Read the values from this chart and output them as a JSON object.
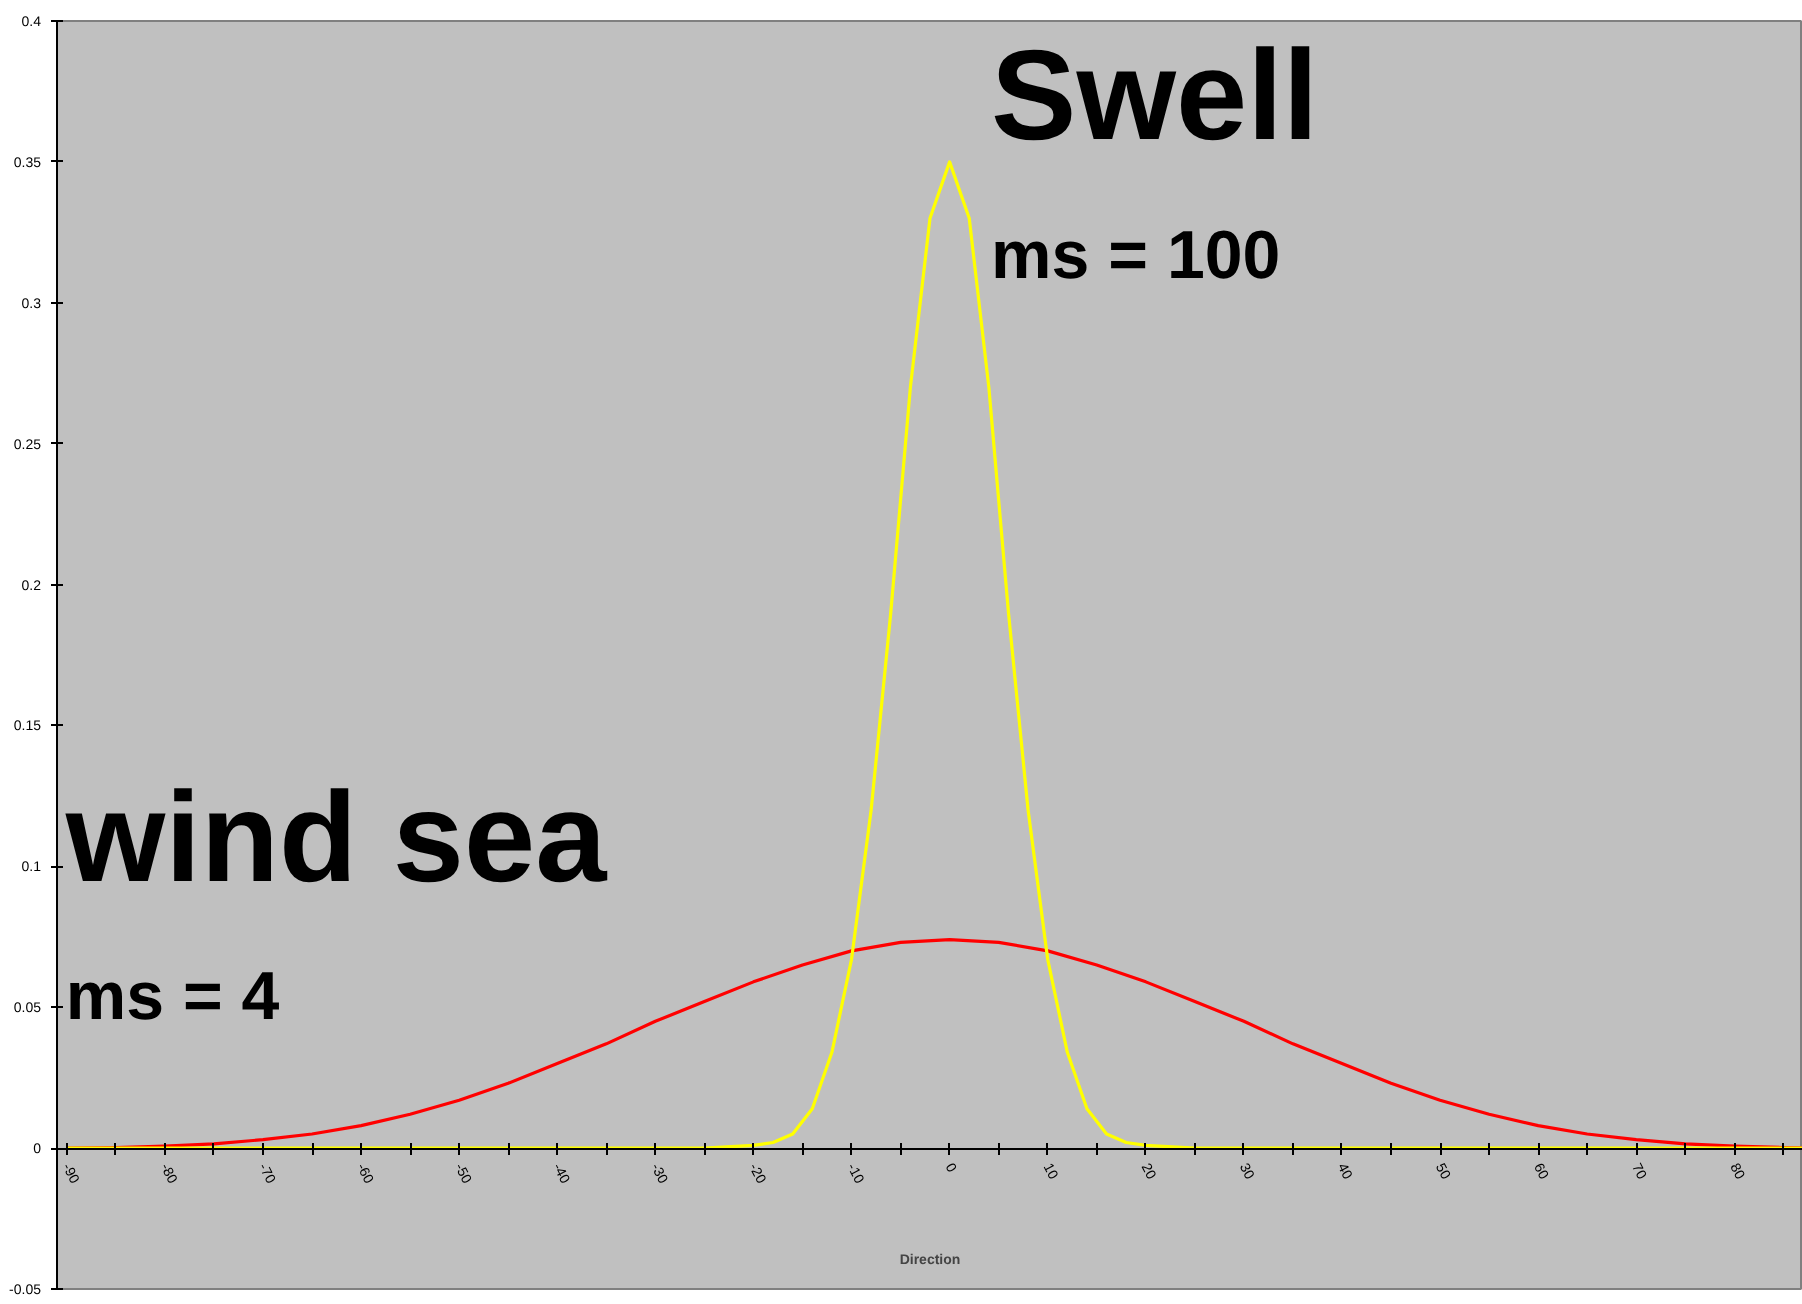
{
  "chart_data": {
    "type": "line",
    "xlabel": "Direction",
    "xlim": [
      -91,
      87
    ],
    "ylim": [
      -0.05,
      0.4
    ],
    "xticks": [
      -90,
      {
        "value": -85,
        "label": null
      },
      -80,
      {
        "value": -75,
        "label": null
      },
      -70,
      {
        "value": -65,
        "label": null
      },
      -60,
      {
        "value": -55,
        "label": null
      },
      -50,
      {
        "value": -45,
        "label": null
      },
      -40,
      {
        "value": -35,
        "label": null
      },
      -30,
      {
        "value": -25,
        "label": null
      },
      -20,
      {
        "value": -15,
        "label": null
      },
      -10,
      {
        "value": -5,
        "label": null
      },
      0,
      {
        "value": 5,
        "label": null
      },
      10,
      {
        "value": 15,
        "label": null
      },
      20,
      {
        "value": 25,
        "label": null
      },
      30,
      {
        "value": 35,
        "label": null
      },
      40,
      {
        "value": 45,
        "label": null
      },
      50,
      {
        "value": 55,
        "label": null
      },
      60,
      {
        "value": 65,
        "label": null
      },
      70,
      {
        "value": 75,
        "label": null
      },
      80,
      {
        "value": 85,
        "label": null
      }
    ],
    "yticks": [
      -0.05,
      0,
      0.05,
      0.1,
      0.15,
      0.2,
      0.25,
      0.3,
      0.35,
      0.4
    ],
    "grid": false,
    "legend": false,
    "marker": "none",
    "line_style": "solid",
    "series": [
      {
        "name": "wind sea",
        "color": "#ff0000",
        "x": [
          -90,
          -85,
          -80,
          -75,
          -70,
          -65,
          -60,
          -55,
          -50,
          -45,
          -40,
          -35,
          -30,
          -25,
          -20,
          -15,
          -10,
          -5,
          0,
          5,
          10,
          15,
          20,
          25,
          30,
          35,
          40,
          45,
          50,
          55,
          60,
          65,
          70,
          75,
          80,
          85,
          87
        ],
        "values": [
          0,
          0.0002,
          0.0007,
          0.0015,
          0.003,
          0.005,
          0.008,
          0.012,
          0.017,
          0.023,
          0.03,
          0.037,
          0.045,
          0.052,
          0.059,
          0.065,
          0.07,
          0.073,
          0.074,
          0.073,
          0.07,
          0.065,
          0.059,
          0.052,
          0.045,
          0.037,
          0.03,
          0.023,
          0.017,
          0.012,
          0.008,
          0.005,
          0.003,
          0.0015,
          0.0007,
          0.0002,
          0.0001
        ]
      },
      {
        "name": "Swell",
        "color": "#ffff00",
        "x": [
          -90,
          -25,
          -20,
          -18,
          -16,
          -14,
          -12,
          -10,
          -8,
          -6,
          -4,
          -2,
          0,
          2,
          4,
          6,
          8,
          10,
          12,
          14,
          16,
          18,
          20,
          25,
          87
        ],
        "values": [
          0,
          0,
          0.001,
          0.002,
          0.005,
          0.014,
          0.034,
          0.067,
          0.12,
          0.19,
          0.27,
          0.33,
          0.35,
          0.33,
          0.27,
          0.19,
          0.12,
          0.067,
          0.034,
          0.014,
          0.005,
          0.002,
          0.001,
          0,
          0
        ]
      }
    ],
    "annotations": [
      "ms = 4",
      "ms = 100"
    ]
  }
}
